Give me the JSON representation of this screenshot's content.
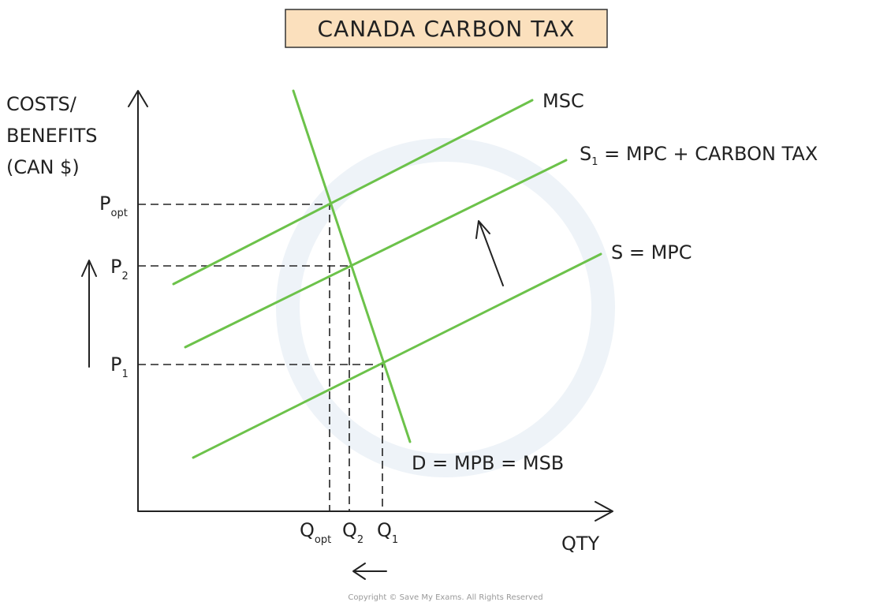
{
  "title": "CANADA CARBON TAX",
  "y_axis_label": [
    "COSTS/",
    "BENEFITS",
    "(CAN $)"
  ],
  "x_axis_label": "QTY",
  "curves": {
    "msc": "MSC",
    "s1": {
      "main": "S",
      "sub": "1",
      "rest": " = MPC + CARBON TAX"
    },
    "s": "S = MPC",
    "d": "D = MPB = MSB"
  },
  "prices": [
    {
      "main": "P",
      "sub": "opt"
    },
    {
      "main": "P",
      "sub": "2"
    },
    {
      "main": "P",
      "sub": "1"
    }
  ],
  "quantities": [
    {
      "main": "Q",
      "sub": "opt"
    },
    {
      "main": "Q",
      "sub": "2"
    },
    {
      "main": "Q",
      "sub": "1"
    }
  ],
  "copyright": "Copyright © Save My Exams. All Rights Reserved"
}
